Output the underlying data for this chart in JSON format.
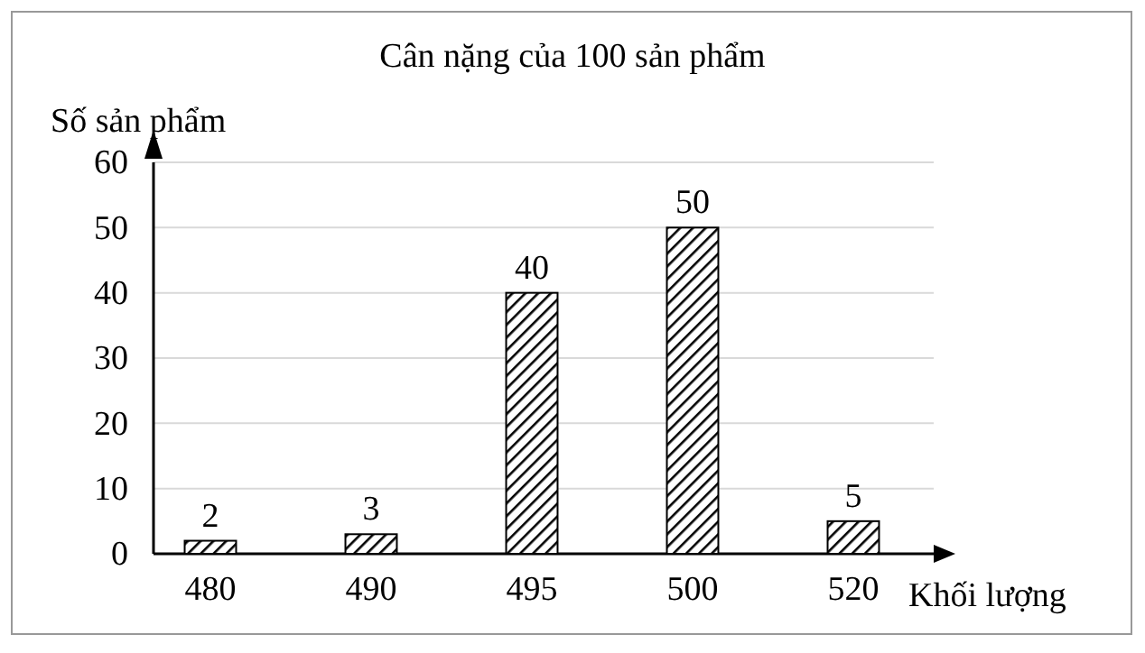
{
  "chart_data": {
    "type": "bar",
    "title": "Cân nặng của 100 sản phẩm",
    "xlabel": "Khối lượng",
    "ylabel": "Số sản phẩm",
    "categories": [
      "480",
      "490",
      "495",
      "500",
      "520"
    ],
    "values": [
      2,
      3,
      40,
      50,
      5
    ],
    "color": "#000000",
    "ylim": [
      0,
      60
    ],
    "yticks": [
      0,
      10,
      20,
      30,
      40,
      50,
      60
    ],
    "grid": "y",
    "data_labels": true
  }
}
